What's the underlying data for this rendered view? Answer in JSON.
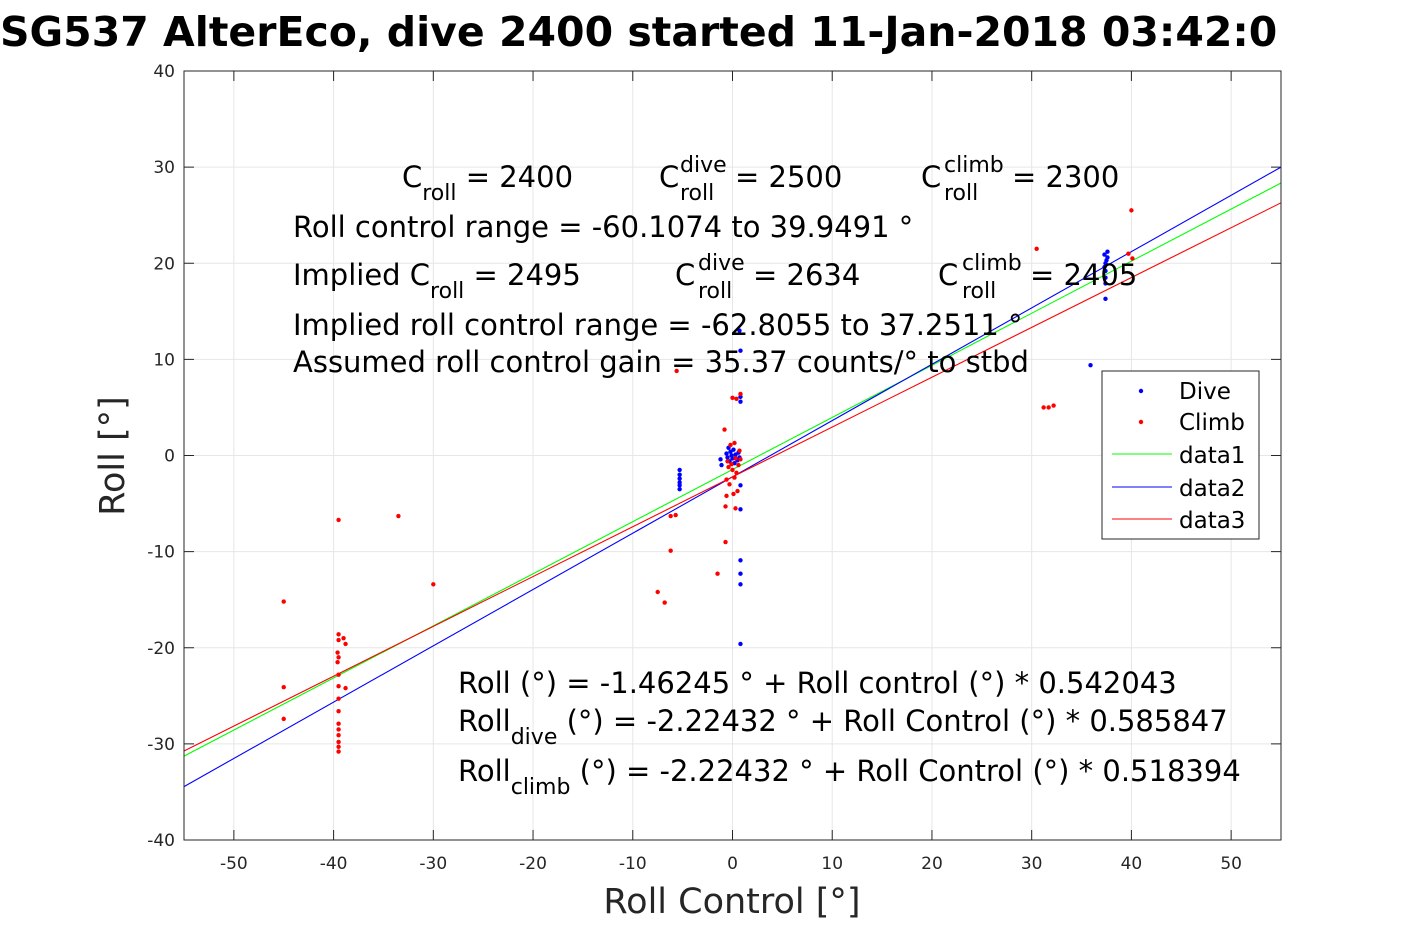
{
  "title": "SG537 AlterEco, dive 2400 started 11-Jan-2018 03:42:0",
  "chart_data": {
    "type": "scatter",
    "title": "SG537 AlterEco, dive 2400 started 11-Jan-2018 03:42:0",
    "xlabel": "Roll Control [°]",
    "ylabel": "Roll [°]",
    "xlim": [
      -55,
      55
    ],
    "ylim": [
      -40,
      40
    ],
    "xticks": [
      -50,
      -40,
      -30,
      -20,
      -10,
      0,
      10,
      20,
      30,
      40,
      50
    ],
    "yticks": [
      -40,
      -30,
      -20,
      -10,
      0,
      10,
      20,
      30,
      40
    ],
    "xtick_labels": [
      "-50",
      "-40",
      "-30",
      "-20",
      "-10",
      "0",
      "10",
      "20",
      "30",
      "40",
      "50"
    ],
    "ytick_labels": [
      "-40",
      "-30",
      "-20",
      "-10",
      "0",
      "10",
      "20",
      "30",
      "40"
    ],
    "grid": true,
    "legend_position": "right",
    "series": [
      {
        "name": "Dive",
        "kind": "points",
        "color": "#0000ff",
        "points": [
          [
            -5.3,
            -1.5
          ],
          [
            -5.3,
            -2.0
          ],
          [
            -5.3,
            -2.4
          ],
          [
            -5.3,
            -2.8
          ],
          [
            -5.3,
            -3.1
          ],
          [
            -5.3,
            -3.5
          ],
          [
            -1.2,
            -0.4
          ],
          [
            -1.1,
            -1.0
          ],
          [
            -0.6,
            0.2
          ],
          [
            -0.5,
            -0.2
          ],
          [
            -0.4,
            0.8
          ],
          [
            -0.3,
            -0.6
          ],
          [
            -0.2,
            0.4
          ],
          [
            -0.1,
            0.0
          ],
          [
            0.0,
            -0.3
          ],
          [
            0.1,
            0.6
          ],
          [
            0.2,
            -0.8
          ],
          [
            0.3,
            0.1
          ],
          [
            0.5,
            -0.5
          ],
          [
            0.6,
            0.3
          ],
          [
            0.7,
            -0.2
          ],
          [
            0.8,
            5.6
          ],
          [
            0.8,
            6.1
          ],
          [
            0.8,
            10.9
          ],
          [
            0.8,
            -3.1
          ],
          [
            0.8,
            -5.6
          ],
          [
            0.8,
            -10.9
          ],
          [
            0.8,
            -12.3
          ],
          [
            0.8,
            -13.4
          ],
          [
            0.8,
            -19.6
          ],
          [
            0.7,
            13.0
          ],
          [
            35.9,
            9.4
          ],
          [
            37.4,
            16.3
          ],
          [
            37.4,
            17.9
          ],
          [
            37.4,
            18.5
          ],
          [
            37.3,
            19.6
          ],
          [
            37.4,
            20.0
          ],
          [
            37.5,
            20.3
          ],
          [
            37.6,
            20.6
          ],
          [
            37.3,
            20.9
          ],
          [
            37.6,
            21.2
          ],
          [
            37.4,
            19.2
          ]
        ]
      },
      {
        "name": "Climb",
        "kind": "points",
        "color": "#ff0000",
        "points": [
          [
            -45.0,
            -15.2
          ],
          [
            -45.0,
            -24.1
          ],
          [
            -45.0,
            -27.4
          ],
          [
            -39.5,
            -6.7
          ],
          [
            -39.5,
            -18.6
          ],
          [
            -39.5,
            -19.2
          ],
          [
            -39.6,
            -20.5
          ],
          [
            -39.5,
            -21.0
          ],
          [
            -39.6,
            -21.5
          ],
          [
            -39.5,
            -22.8
          ],
          [
            -39.5,
            -24.0
          ],
          [
            -39.5,
            -25.3
          ],
          [
            -39.5,
            -26.6
          ],
          [
            -39.5,
            -27.9
          ],
          [
            -39.5,
            -28.5
          ],
          [
            -39.5,
            -29.1
          ],
          [
            -39.5,
            -29.8
          ],
          [
            -39.5,
            -30.3
          ],
          [
            -39.5,
            -30.8
          ],
          [
            -38.8,
            -19.6
          ],
          [
            -38.8,
            -24.2
          ],
          [
            -39.0,
            -19.0
          ],
          [
            -33.5,
            -6.3
          ],
          [
            -30.0,
            -13.4
          ],
          [
            -7.5,
            -14.2
          ],
          [
            -6.8,
            -15.3
          ],
          [
            -6.2,
            -6.3
          ],
          [
            -6.2,
            -9.9
          ],
          [
            -5.7,
            -6.2
          ],
          [
            -5.6,
            8.8
          ],
          [
            -1.5,
            -12.3
          ],
          [
            -0.8,
            2.7
          ],
          [
            -0.7,
            -5.3
          ],
          [
            -0.7,
            -9.0
          ],
          [
            -0.6,
            -2.5
          ],
          [
            -0.6,
            -4.2
          ],
          [
            -0.5,
            -0.6
          ],
          [
            -0.4,
            -1.2
          ],
          [
            -0.3,
            -3.0
          ],
          [
            -0.2,
            1.1
          ],
          [
            -0.1,
            -0.9
          ],
          [
            0.0,
            -1.5
          ],
          [
            0.0,
            6.0
          ],
          [
            0.1,
            -4.0
          ],
          [
            0.2,
            1.3
          ],
          [
            0.2,
            -2.3
          ],
          [
            0.3,
            -0.3
          ],
          [
            0.4,
            -1.8
          ],
          [
            0.4,
            5.9
          ],
          [
            0.5,
            -3.7
          ],
          [
            0.6,
            -1.0
          ],
          [
            0.7,
            0.5
          ],
          [
            0.8,
            6.4
          ],
          [
            0.8,
            -0.4
          ],
          [
            0.3,
            -5.5
          ],
          [
            30.5,
            21.5
          ],
          [
            31.2,
            5.0
          ],
          [
            31.7,
            5.0
          ],
          [
            32.2,
            5.2
          ],
          [
            39.7,
            21.0
          ],
          [
            40.0,
            25.5
          ],
          [
            40.1,
            20.5
          ]
        ]
      },
      {
        "name": "data1",
        "kind": "line",
        "color": "#00ff00",
        "intercept": -1.46245,
        "slope": 0.542043
      },
      {
        "name": "data2",
        "kind": "line",
        "color": "#0000ff",
        "intercept": -2.22432,
        "slope": 0.585847
      },
      {
        "name": "data3",
        "kind": "line",
        "color": "#ff0000",
        "intercept": -2.22432,
        "slope": 0.518394
      }
    ],
    "annotations": {
      "c_roll": {
        "label": "C",
        "sub": "roll",
        "value": " = 2400"
      },
      "c_dive": {
        "label": "C",
        "sup": "dive",
        "sub": "roll",
        "value": " = 2500"
      },
      "c_climb": {
        "label": "C",
        "sup": "climb",
        "sub": "roll",
        "value": " = 2300"
      },
      "range": "Roll control range = -60.1074 to 39.9491 °",
      "implied_c_roll": {
        "prefix": "Implied C",
        "sub": "roll",
        "value": " = 2495"
      },
      "implied_c_dive": {
        "label": "C",
        "sup": "dive",
        "sub": "roll",
        "value": " = 2634"
      },
      "implied_c_climb": {
        "label": "C",
        "sup": "climb",
        "sub": "roll",
        "value": " = 2405"
      },
      "implied_range": "Implied roll control range = -62.8055 to 37.2511 °",
      "gain": "Assumed roll control gain = 35.37 counts/° to stbd",
      "fit_all": "Roll (°) = -1.46245 ° + Roll control (°) * 0.542043",
      "fit_dive": {
        "prefix": "Roll",
        "sub": "dive",
        "rest": " (°) = -2.22432 ° + Roll Control (°) * 0.585847"
      },
      "fit_climb": {
        "prefix": "Roll",
        "sub": "climb",
        "rest": " (°) = -2.22432 ° + Roll Control (°) * 0.518394"
      }
    }
  }
}
